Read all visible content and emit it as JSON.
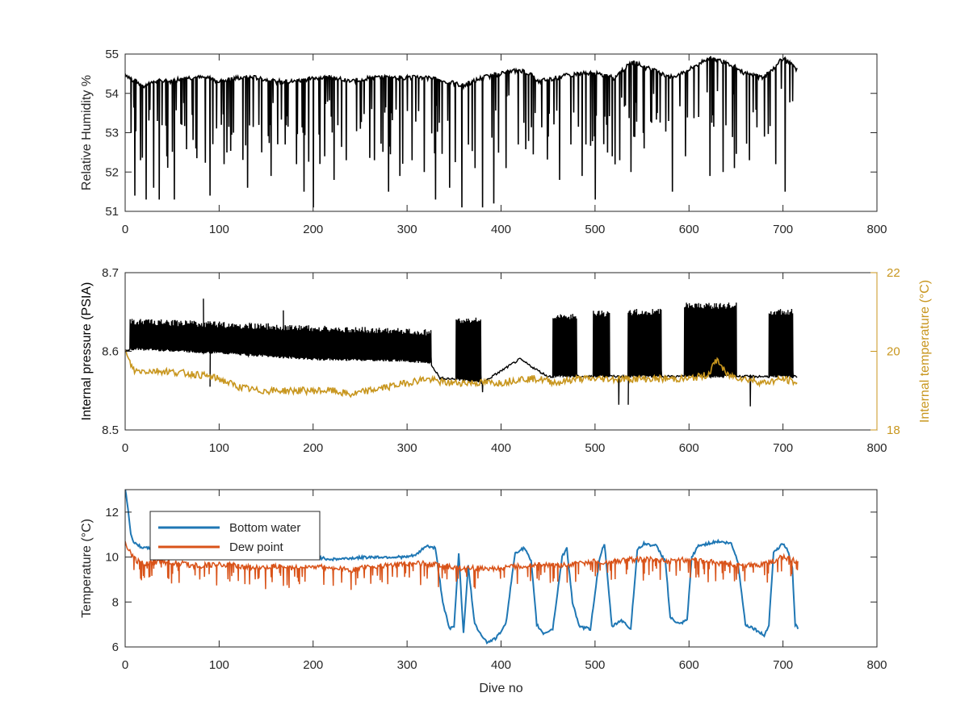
{
  "colors": {
    "axis": "#262626",
    "humidity": "#000000",
    "pressure": "#000000",
    "internal_temp": "#c8961e",
    "bottom_water": "#1f77b4",
    "dew_point": "#d95319"
  },
  "chart_data": [
    {
      "type": "line",
      "xlabel": "",
      "ylabel": "Relative Humidity %",
      "xlim": [
        0,
        800
      ],
      "ylim": [
        51,
        55
      ],
      "xticks": [
        "0",
        "100",
        "200",
        "300",
        "400",
        "500",
        "600",
        "700",
        "800"
      ],
      "yticks": [
        "51",
        "52",
        "53",
        "54",
        "55"
      ],
      "series": [
        {
          "x": [
            0,
            10,
            20,
            30,
            40,
            50,
            60,
            70,
            80,
            90,
            100,
            120,
            140,
            160,
            180,
            200,
            220,
            240,
            260,
            280,
            300,
            320,
            340,
            360,
            380,
            400,
            420,
            430,
            440,
            460,
            480,
            500,
            520,
            540,
            560,
            580,
            600,
            620,
            640,
            660,
            680,
            700,
            715
          ],
          "y": [
            54.5,
            54.3,
            54.2,
            54.3,
            54.3,
            54.3,
            54.4,
            54.4,
            54.4,
            54.4,
            54.3,
            54.4,
            54.4,
            54.3,
            54.3,
            54.4,
            54.4,
            54.3,
            54.4,
            54.4,
            54.4,
            54.4,
            54.3,
            54.2,
            54.4,
            54.5,
            54.6,
            54.5,
            54.3,
            54.4,
            54.5,
            54.5,
            54.4,
            54.8,
            54.6,
            54.4,
            54.6,
            54.9,
            54.8,
            54.5,
            54.4,
            54.9,
            54.6
          ],
          "dips": [
            [
              10,
              51.4
            ],
            [
              16,
              52.3
            ],
            [
              22,
              51.3
            ],
            [
              30,
              51.6
            ],
            [
              36,
              51.3
            ],
            [
              44,
              52.4
            ],
            [
              52,
              51.3
            ],
            [
              60,
              53.2
            ],
            [
              75,
              52.6
            ],
            [
              90,
              51.4
            ],
            [
              105,
              52.2
            ],
            [
              115,
              53.0
            ],
            [
              130,
              51.6
            ],
            [
              145,
              52.5
            ],
            [
              155,
              51.9
            ],
            [
              170,
              52.7
            ],
            [
              182,
              52.2
            ],
            [
              190,
              51.5
            ],
            [
              200,
              51.1
            ],
            [
              212,
              52.4
            ],
            [
              222,
              51.8
            ],
            [
              235,
              52.3
            ],
            [
              250,
              53.1
            ],
            [
              265,
              52.3
            ],
            [
              280,
              51.5
            ],
            [
              292,
              51.9
            ],
            [
              305,
              52.3
            ],
            [
              318,
              52.0
            ],
            [
              330,
              51.3
            ],
            [
              345,
              51.6
            ],
            [
              358,
              51.1
            ],
            [
              372,
              52.1
            ],
            [
              380,
              51.1
            ],
            [
              392,
              51.2
            ],
            [
              405,
              52.1
            ],
            [
              418,
              52.7
            ],
            [
              436,
              53.5
            ],
            [
              450,
              52.9
            ],
            [
              462,
              51.8
            ],
            [
              474,
              52.7
            ],
            [
              486,
              51.9
            ],
            [
              500,
              51.3
            ],
            [
              512,
              53.2
            ],
            [
              526,
              52.3
            ],
            [
              538,
              52.0
            ],
            [
              552,
              52.6
            ],
            [
              566,
              53.5
            ],
            [
              582,
              51.5
            ],
            [
              596,
              52.4
            ],
            [
              610,
              53.4
            ],
            [
              622,
              51.9
            ],
            [
              636,
              52.0
            ],
            [
              648,
              52.1
            ],
            [
              664,
              52.3
            ],
            [
              680,
              52.9
            ],
            [
              692,
              52.2
            ],
            [
              702,
              51.5
            ],
            [
              710,
              53.8
            ]
          ],
          "color_key": "humidity"
        }
      ]
    },
    {
      "type": "line",
      "xlabel": "",
      "ylabel": "Internal pressure (PSIA)",
      "ylabel_right": "Internal temperature (°C)",
      "xlim": [
        0,
        800
      ],
      "ylim": [
        8.5,
        8.7
      ],
      "ylim_right": [
        18,
        22
      ],
      "xticks": [
        "0",
        "100",
        "200",
        "300",
        "400",
        "500",
        "600",
        "700",
        "800"
      ],
      "yticks": [
        "8.5",
        "8.6",
        "8.7"
      ],
      "yticks_right": [
        "18",
        "20",
        "22"
      ],
      "series": [
        {
          "axis": "left",
          "base": [
            [
              0,
              8.6
            ],
            [
              10,
              8.603
            ],
            [
              100,
              8.598
            ],
            [
              200,
              8.59
            ],
            [
              300,
              8.588
            ],
            [
              325,
              8.585
            ],
            [
              335,
              8.566
            ],
            [
              350,
              8.565
            ],
            [
              380,
              8.56
            ],
            [
              400,
              8.575
            ],
            [
              420,
              8.59
            ],
            [
              440,
              8.575
            ],
            [
              450,
              8.568
            ],
            [
              500,
              8.568
            ],
            [
              560,
              8.568
            ],
            [
              600,
              8.568
            ],
            [
              660,
              8.568
            ],
            [
              700,
              8.568
            ],
            [
              715,
              8.568
            ]
          ],
          "bursts": [
            [
              5,
              325,
              8.642,
              8.628
            ],
            [
              352,
              378,
              8.643,
              8.643
            ],
            [
              455,
              480,
              8.648,
              8.648
            ],
            [
              498,
              515,
              8.652,
              8.652
            ],
            [
              535,
              570,
              8.654,
              8.654
            ],
            [
              595,
              650,
              8.662,
              8.662
            ],
            [
              685,
              710,
              8.654,
              8.654
            ]
          ],
          "spikes": [
            [
              83,
              8.667
            ],
            [
              90,
              8.555
            ],
            [
              168,
              8.652
            ],
            [
              380,
              8.548
            ],
            [
              525,
              8.532
            ],
            [
              535,
              8.532
            ],
            [
              665,
              8.53
            ]
          ],
          "color_key": "pressure"
        },
        {
          "axis": "right",
          "x": [
            0,
            5,
            10,
            40,
            80,
            100,
            120,
            140,
            160,
            180,
            200,
            220,
            240,
            260,
            280,
            300,
            320,
            340,
            360,
            380,
            400,
            420,
            440,
            460,
            480,
            500,
            520,
            540,
            560,
            580,
            600,
            620,
            630,
            640,
            660,
            680,
            700,
            715
          ],
          "y": [
            20.0,
            19.7,
            19.5,
            19.5,
            19.4,
            19.3,
            19.1,
            19.0,
            19.0,
            19.0,
            19.0,
            19.0,
            18.9,
            19.0,
            19.1,
            19.2,
            19.3,
            19.2,
            19.2,
            19.2,
            19.2,
            19.3,
            19.3,
            19.2,
            19.3,
            19.3,
            19.3,
            19.3,
            19.3,
            19.3,
            19.3,
            19.4,
            19.8,
            19.4,
            19.3,
            19.2,
            19.3,
            19.2
          ],
          "color_key": "internal_temp"
        }
      ]
    },
    {
      "type": "line",
      "xlabel": "Dive no",
      "ylabel": "Temperature (°C)",
      "xlim": [
        0,
        800
      ],
      "ylim": [
        6,
        13
      ],
      "xticks": [
        "0",
        "100",
        "200",
        "300",
        "400",
        "500",
        "600",
        "700",
        "800"
      ],
      "yticks": [
        "6",
        "8",
        "10",
        "12"
      ],
      "legend": {
        "placement": "upper-left",
        "entries": [
          "Bottom water",
          "Dew point"
        ]
      },
      "series": [
        {
          "name": "Bottom water",
          "x": [
            0,
            3,
            6,
            10,
            20,
            60,
            100,
            140,
            180,
            200,
            220,
            260,
            300,
            310,
            320,
            330,
            338,
            345,
            350,
            355,
            360,
            365,
            372,
            380,
            385,
            395,
            405,
            415,
            425,
            432,
            438,
            445,
            455,
            465,
            470,
            476,
            483,
            495,
            505,
            510,
            518,
            528,
            538,
            545,
            552,
            565,
            575,
            580,
            590,
            598,
            603,
            610,
            630,
            645,
            652,
            660,
            670,
            680,
            685,
            690,
            700,
            705,
            710,
            713,
            716
          ],
          "y": [
            13.0,
            12.2,
            11.0,
            10.6,
            10.4,
            10.3,
            10.2,
            10.1,
            10.0,
            10.0,
            9.9,
            10.0,
            10.0,
            10.1,
            10.5,
            10.4,
            8.0,
            6.8,
            6.9,
            10.2,
            6.6,
            9.6,
            7.0,
            6.5,
            6.2,
            6.4,
            7.0,
            10.2,
            10.4,
            9.8,
            7.0,
            6.6,
            6.8,
            10.0,
            10.4,
            8.0,
            6.9,
            6.8,
            10.0,
            10.6,
            6.9,
            7.2,
            6.8,
            10.3,
            10.6,
            10.5,
            9.8,
            7.3,
            7.0,
            7.2,
            10.0,
            10.5,
            10.7,
            10.6,
            9.8,
            7.0,
            6.8,
            6.5,
            7.0,
            10.2,
            10.6,
            10.3,
            9.5,
            7.0,
            6.8
          ],
          "color_key": "bottom_water"
        },
        {
          "name": "Dew point",
          "x": [
            0,
            5,
            10,
            20,
            40,
            60,
            80,
            100,
            120,
            140,
            160,
            180,
            200,
            220,
            240,
            260,
            280,
            300,
            320,
            340,
            360,
            380,
            400,
            420,
            440,
            460,
            480,
            500,
            520,
            540,
            560,
            580,
            600,
            620,
            640,
            660,
            680,
            700,
            715
          ],
          "y": [
            10.6,
            10.2,
            9.9,
            9.7,
            9.8,
            9.7,
            9.6,
            9.7,
            9.6,
            9.5,
            9.6,
            9.5,
            9.6,
            9.5,
            9.4,
            9.6,
            9.6,
            9.7,
            9.7,
            9.6,
            9.5,
            9.5,
            9.5,
            9.6,
            9.7,
            9.6,
            9.7,
            9.8,
            9.8,
            9.9,
            9.9,
            9.8,
            9.9,
            9.8,
            9.7,
            9.6,
            9.7,
            10.0,
            9.8
          ],
          "color_key": "dew_point"
        }
      ]
    }
  ]
}
